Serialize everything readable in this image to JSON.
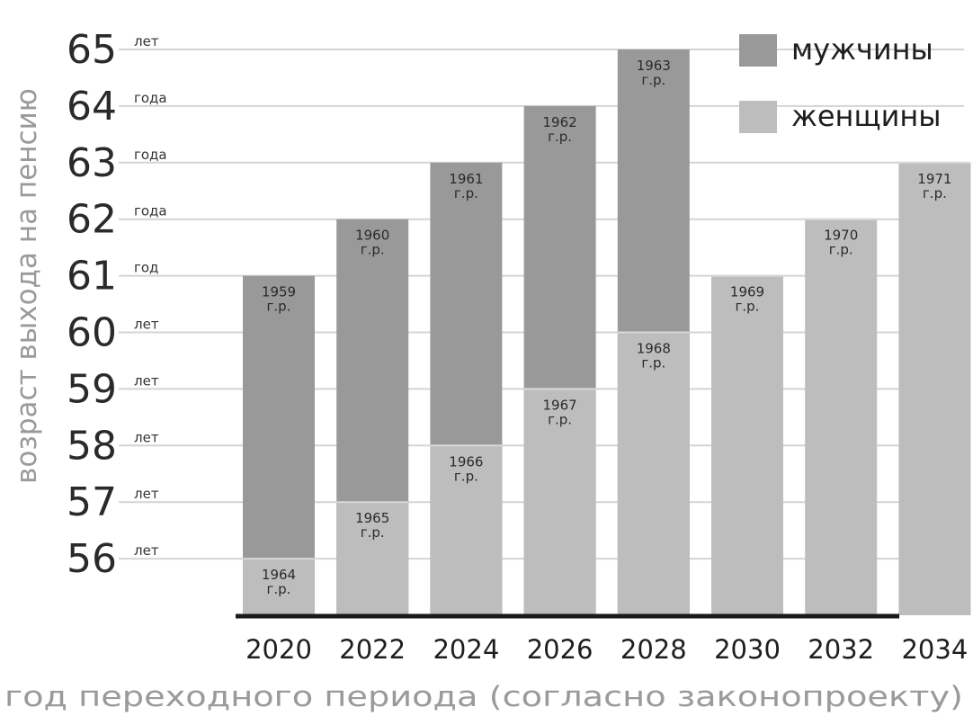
{
  "chart_data": {
    "type": "bar",
    "stacked": "overlay",
    "categories": [
      "2020",
      "2022",
      "2024",
      "2026",
      "2028",
      "2030",
      "2032",
      "2034"
    ],
    "ylabel": "возраст выхода на пенсию",
    "xlabel": "год переходного периода (согласно законопроекту)",
    "ylim": [
      55,
      65
    ],
    "yticks": [
      {
        "value": 65,
        "label": "65",
        "unit": "лет"
      },
      {
        "value": 64,
        "label": "64",
        "unit": "года"
      },
      {
        "value": 63,
        "label": "63",
        "unit": "года"
      },
      {
        "value": 62,
        "label": "62",
        "unit": "года"
      },
      {
        "value": 61,
        "label": "61",
        "unit": "год"
      },
      {
        "value": 60,
        "label": "60",
        "unit": "лет"
      },
      {
        "value": 59,
        "label": "59",
        "unit": "лет"
      },
      {
        "value": 58,
        "label": "58",
        "unit": "лет"
      },
      {
        "value": 57,
        "label": "57",
        "unit": "лет"
      },
      {
        "value": 56,
        "label": "56",
        "unit": "лет"
      }
    ],
    "grid": true,
    "legend_position": "top-right",
    "series": [
      {
        "name": "мужчины",
        "color": "#999999",
        "values": [
          61,
          62,
          63,
          64,
          65,
          null,
          null,
          null
        ],
        "labels": [
          "1959 г.р.",
          "1960 г.р.",
          "1961 г.р.",
          "1962 г.р.",
          "1963 г.р.",
          "",
          "",
          ""
        ]
      },
      {
        "name": "женщины",
        "color": "#bdbdbd",
        "values": [
          56,
          57,
          58,
          59,
          60,
          61,
          62,
          63
        ],
        "labels": [
          "1964 г.р.",
          "1965 г.р.",
          "1966 г.р.",
          "1967 г.р.",
          "1968 г.р.",
          "1969 г.р.",
          "1970 г.р.",
          "1971 г.р."
        ]
      }
    ]
  }
}
